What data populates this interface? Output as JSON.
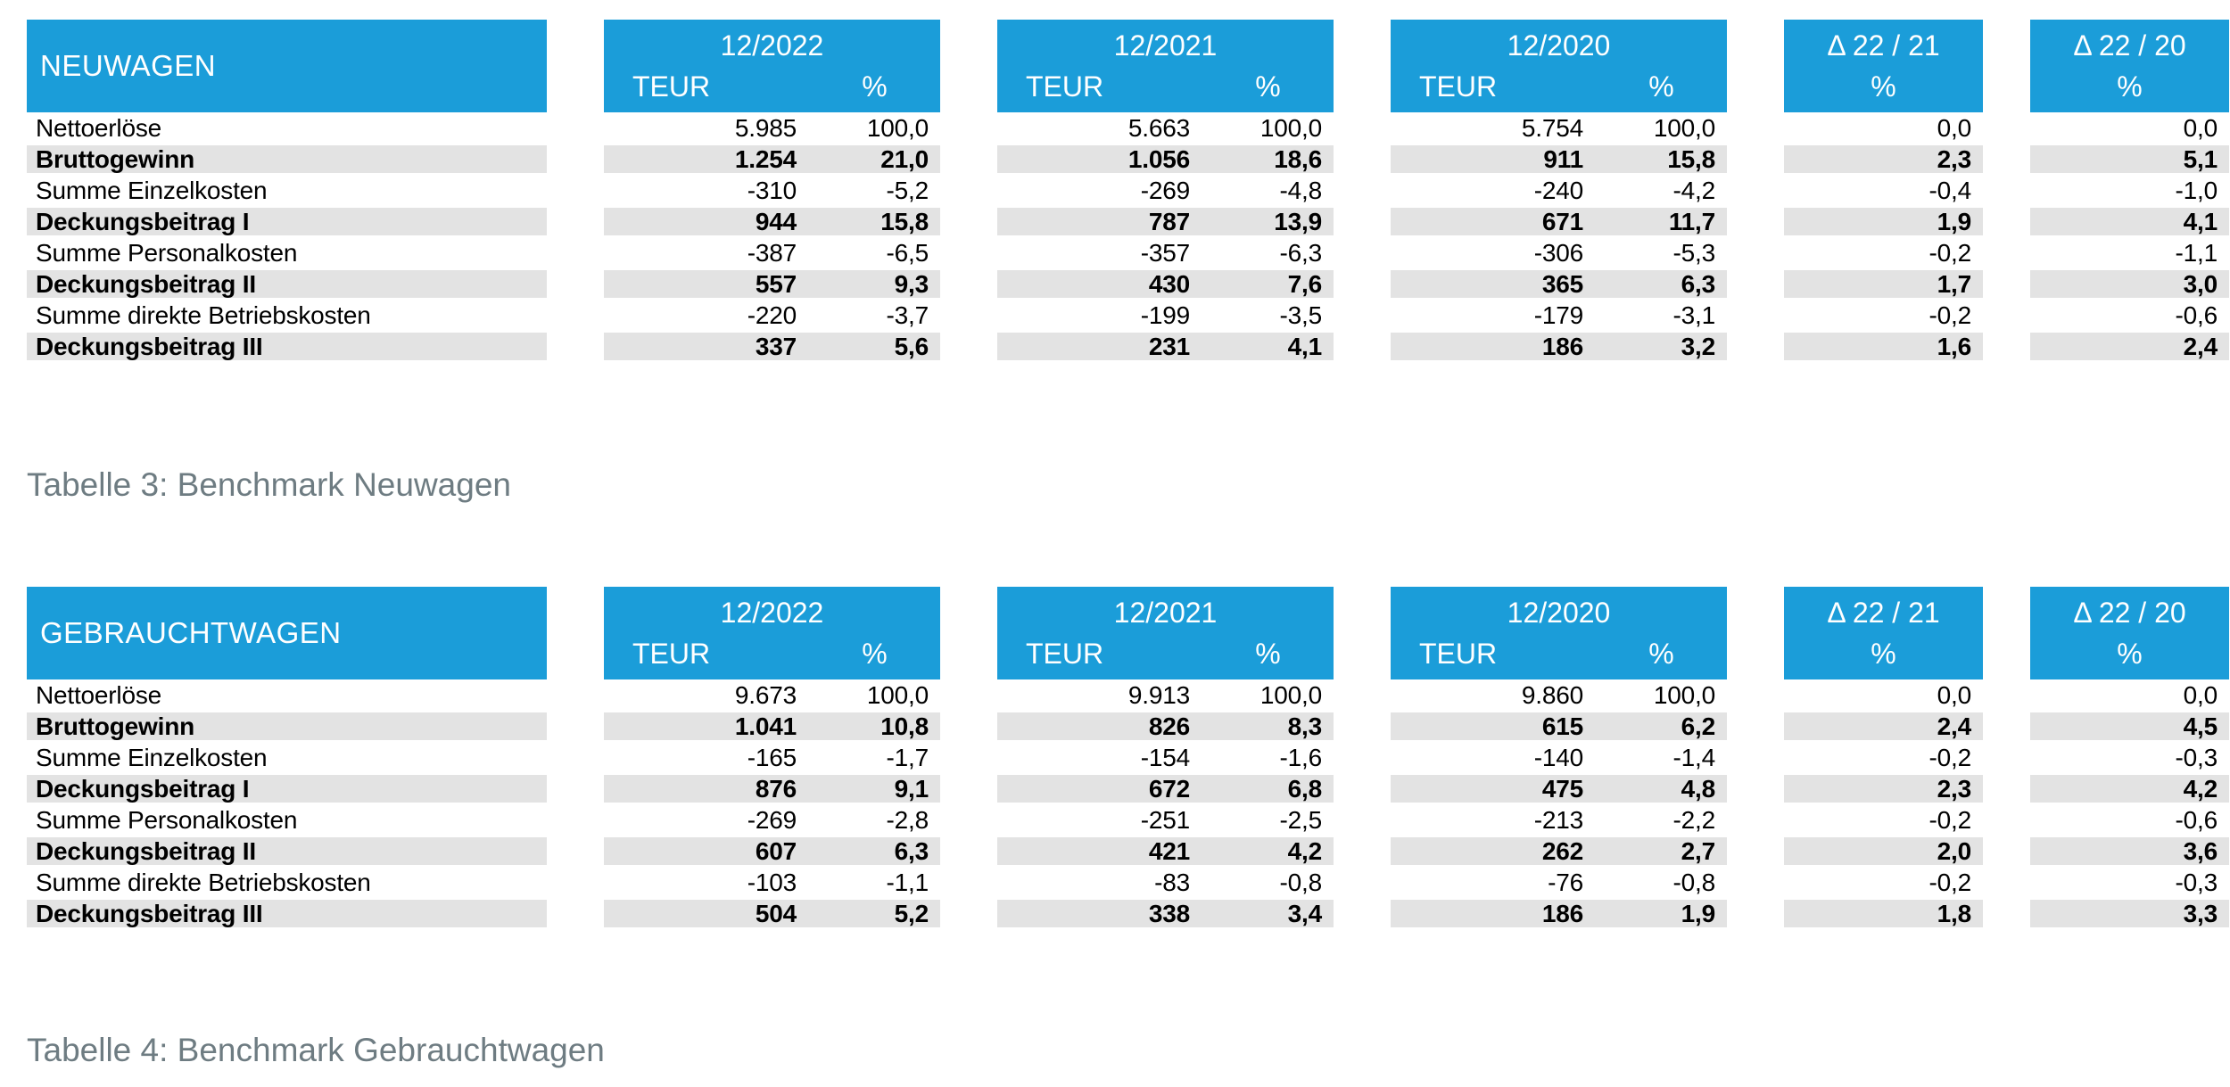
{
  "theme": {
    "accent_blue": "#1B9DD9",
    "stripe_gray": "#E3E3E3",
    "caption_gray": "#6E7C82",
    "background": "#FFFFFF"
  },
  "tables": [
    {
      "title": "NEUWAGEN",
      "caption": "Tabelle 3: Benchmark Neuwagen",
      "years": [
        {
          "title": "12/2022",
          "col1": "TEUR",
          "col2": "%"
        },
        {
          "title": "12/2021",
          "col1": "TEUR",
          "col2": "%"
        },
        {
          "title": "12/2020",
          "col1": "TEUR",
          "col2": "%"
        }
      ],
      "deltas": [
        {
          "title": "Δ 22 / 21",
          "col": "%"
        },
        {
          "title": "Δ 22 / 20",
          "col": "%"
        }
      ],
      "rows": [
        {
          "label": "Nettoerlöse",
          "bold": false,
          "v": [
            "5.985",
            "100,0",
            "5.663",
            "100,0",
            "5.754",
            "100,0",
            "0,0",
            "0,0"
          ]
        },
        {
          "label": "Bruttogewinn",
          "bold": true,
          "v": [
            "1.254",
            "21,0",
            "1.056",
            "18,6",
            "911",
            "15,8",
            "2,3",
            "5,1"
          ]
        },
        {
          "label": "Summe Einzelkosten",
          "bold": false,
          "v": [
            "-310",
            "-5,2",
            "-269",
            "-4,8",
            "-240",
            "-4,2",
            "-0,4",
            "-1,0"
          ]
        },
        {
          "label": "Deckungsbeitrag I",
          "bold": true,
          "v": [
            "944",
            "15,8",
            "787",
            "13,9",
            "671",
            "11,7",
            "1,9",
            "4,1"
          ]
        },
        {
          "label": "Summe Personalkosten",
          "bold": false,
          "v": [
            "-387",
            "-6,5",
            "-357",
            "-6,3",
            "-306",
            "-5,3",
            "-0,2",
            "-1,1"
          ]
        },
        {
          "label": "Deckungsbeitrag II",
          "bold": true,
          "v": [
            "557",
            "9,3",
            "430",
            "7,6",
            "365",
            "6,3",
            "1,7",
            "3,0"
          ]
        },
        {
          "label": "Summe direkte Betriebskosten",
          "bold": false,
          "v": [
            "-220",
            "-3,7",
            "-199",
            "-3,5",
            "-179",
            "-3,1",
            "-0,2",
            "-0,6"
          ]
        },
        {
          "label": "Deckungsbeitrag III",
          "bold": true,
          "v": [
            "337",
            "5,6",
            "231",
            "4,1",
            "186",
            "3,2",
            "1,6",
            "2,4"
          ]
        }
      ]
    },
    {
      "title": "GEBRAUCHTWAGEN",
      "caption": "Tabelle 4: Benchmark Gebrauchtwagen",
      "years": [
        {
          "title": "12/2022",
          "col1": "TEUR",
          "col2": "%"
        },
        {
          "title": "12/2021",
          "col1": "TEUR",
          "col2": "%"
        },
        {
          "title": "12/2020",
          "col1": "TEUR",
          "col2": "%"
        }
      ],
      "deltas": [
        {
          "title": "Δ 22 / 21",
          "col": "%"
        },
        {
          "title": "Δ 22 / 20",
          "col": "%"
        }
      ],
      "rows": [
        {
          "label": "Nettoerlöse",
          "bold": false,
          "v": [
            "9.673",
            "100,0",
            "9.913",
            "100,0",
            "9.860",
            "100,0",
            "0,0",
            "0,0"
          ]
        },
        {
          "label": "Bruttogewinn",
          "bold": true,
          "v": [
            "1.041",
            "10,8",
            "826",
            "8,3",
            "615",
            "6,2",
            "2,4",
            "4,5"
          ]
        },
        {
          "label": "Summe Einzelkosten",
          "bold": false,
          "v": [
            "-165",
            "-1,7",
            "-154",
            "-1,6",
            "-140",
            "-1,4",
            "-0,2",
            "-0,3"
          ]
        },
        {
          "label": "Deckungsbeitrag I",
          "bold": true,
          "v": [
            "876",
            "9,1",
            "672",
            "6,8",
            "475",
            "4,8",
            "2,3",
            "4,2"
          ]
        },
        {
          "label": "Summe Personalkosten",
          "bold": false,
          "v": [
            "-269",
            "-2,8",
            "-251",
            "-2,5",
            "-213",
            "-2,2",
            "-0,2",
            "-0,6"
          ]
        },
        {
          "label": "Deckungsbeitrag II",
          "bold": true,
          "v": [
            "607",
            "6,3",
            "421",
            "4,2",
            "262",
            "2,7",
            "2,0",
            "3,6"
          ]
        },
        {
          "label": "Summe direkte Betriebskosten",
          "bold": false,
          "v": [
            "-103",
            "-1,1",
            "-83",
            "-0,8",
            "-76",
            "-0,8",
            "-0,2",
            "-0,3"
          ]
        },
        {
          "label": "Deckungsbeitrag III",
          "bold": true,
          "v": [
            "504",
            "5,2",
            "338",
            "3,4",
            "186",
            "1,9",
            "1,8",
            "3,3"
          ]
        }
      ]
    }
  ]
}
